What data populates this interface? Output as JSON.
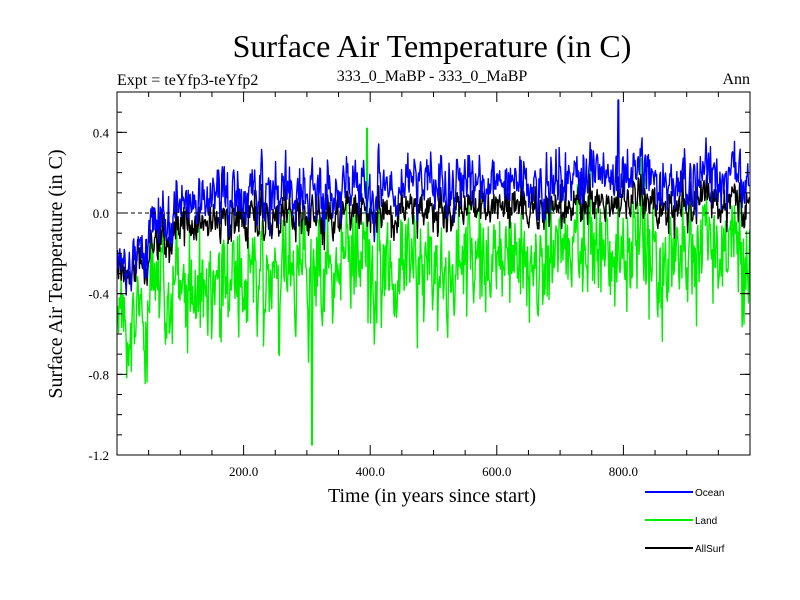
{
  "chart_data": {
    "type": "line",
    "title": "Surface Air Temperature (in C)",
    "subtitle_left": "Expt = teYfp3-teYfp2",
    "subtitle_center": "333_0_MaBP - 333_0_MaBP",
    "subtitle_right": "Ann",
    "xlabel": "Time (in years since start)",
    "ylabel": "Surface Air Temperature (in C)",
    "xlim": [
      0,
      1000
    ],
    "ylim": [
      -1.2,
      0.6
    ],
    "xticks": [
      200,
      400,
      600,
      800
    ],
    "xtick_labels": [
      "200.0",
      "400.0",
      "600.0",
      "800.0"
    ],
    "yticks": [
      -1.2,
      -0.8,
      -0.4,
      0.0,
      0.4
    ],
    "ytick_labels": [
      "-1.2",
      "-0.8",
      "-0.4",
      "0.0",
      "0.4"
    ],
    "zero_line": 0.0,
    "n_years": 1000,
    "series": [
      {
        "name": "Ocean",
        "color": "#0000ff",
        "x": [
          0,
          25,
          50,
          75,
          100,
          150,
          200,
          250,
          300,
          350,
          400,
          450,
          500,
          550,
          600,
          650,
          700,
          750,
          800,
          850,
          900,
          950,
          1000
        ],
        "values": [
          -0.28,
          -0.2,
          -0.1,
          -0.05,
          0.06,
          0.08,
          0.08,
          0.1,
          0.08,
          0.11,
          0.12,
          0.13,
          0.15,
          0.15,
          0.18,
          0.16,
          0.15,
          0.16,
          0.23,
          0.18,
          0.16,
          0.17,
          0.18
        ],
        "noise": 0.09,
        "max_point": [
          792,
          0.56
        ]
      },
      {
        "name": "Land",
        "color": "#00ee00",
        "x": [
          0,
          25,
          50,
          75,
          100,
          150,
          200,
          250,
          300,
          350,
          400,
          450,
          500,
          550,
          600,
          650,
          700,
          750,
          800,
          850,
          900,
          950,
          1000
        ],
        "values": [
          -0.55,
          -0.5,
          -0.45,
          -0.4,
          -0.36,
          -0.34,
          -0.33,
          -0.32,
          -0.31,
          -0.28,
          -0.26,
          -0.27,
          -0.25,
          -0.24,
          -0.2,
          -0.22,
          -0.19,
          -0.21,
          -0.15,
          -0.2,
          -0.19,
          -0.18,
          -0.2
        ],
        "noise": 0.17,
        "min_point": [
          308,
          -1.15
        ],
        "max_point": [
          395,
          0.42
        ]
      },
      {
        "name": "AllSurf",
        "color": "#000000",
        "x": [
          0,
          25,
          50,
          75,
          100,
          150,
          200,
          250,
          300,
          350,
          400,
          450,
          500,
          550,
          600,
          650,
          700,
          750,
          800,
          850,
          900,
          950,
          1000
        ],
        "values": [
          -0.3,
          -0.25,
          -0.2,
          -0.15,
          -0.05,
          -0.04,
          -0.03,
          -0.02,
          -0.03,
          -0.01,
          0.0,
          0.0,
          0.02,
          0.02,
          0.04,
          0.03,
          0.03,
          0.03,
          0.08,
          0.04,
          0.04,
          0.05,
          0.05
        ],
        "noise": 0.07
      }
    ],
    "legend_position": "bottom-right"
  }
}
